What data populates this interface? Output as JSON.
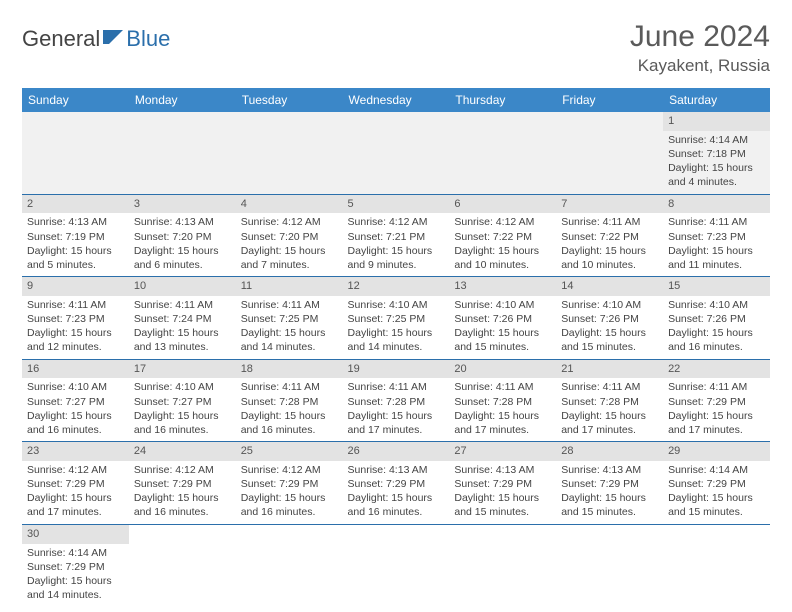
{
  "brand": {
    "part1": "General",
    "part2": "Blue"
  },
  "title": "June 2024",
  "location": "Kayakent, Russia",
  "colors": {
    "header_bg": "#3b87c8",
    "header_text": "#ffffff",
    "daynum_bg": "#e3e3e3",
    "row_divider": "#2b6fab",
    "empty_bg": "#f1f1f1",
    "brand_blue": "#2b6fab",
    "text": "#444444"
  },
  "weekdays": [
    "Sunday",
    "Monday",
    "Tuesday",
    "Wednesday",
    "Thursday",
    "Friday",
    "Saturday"
  ],
  "first_weekday_index": 6,
  "days": [
    {
      "n": 1,
      "sunrise": "4:14 AM",
      "sunset": "7:18 PM",
      "daylight": "15 hours and 4 minutes."
    },
    {
      "n": 2,
      "sunrise": "4:13 AM",
      "sunset": "7:19 PM",
      "daylight": "15 hours and 5 minutes."
    },
    {
      "n": 3,
      "sunrise": "4:13 AM",
      "sunset": "7:20 PM",
      "daylight": "15 hours and 6 minutes."
    },
    {
      "n": 4,
      "sunrise": "4:12 AM",
      "sunset": "7:20 PM",
      "daylight": "15 hours and 7 minutes."
    },
    {
      "n": 5,
      "sunrise": "4:12 AM",
      "sunset": "7:21 PM",
      "daylight": "15 hours and 9 minutes."
    },
    {
      "n": 6,
      "sunrise": "4:12 AM",
      "sunset": "7:22 PM",
      "daylight": "15 hours and 10 minutes."
    },
    {
      "n": 7,
      "sunrise": "4:11 AM",
      "sunset": "7:22 PM",
      "daylight": "15 hours and 10 minutes."
    },
    {
      "n": 8,
      "sunrise": "4:11 AM",
      "sunset": "7:23 PM",
      "daylight": "15 hours and 11 minutes."
    },
    {
      "n": 9,
      "sunrise": "4:11 AM",
      "sunset": "7:23 PM",
      "daylight": "15 hours and 12 minutes."
    },
    {
      "n": 10,
      "sunrise": "4:11 AM",
      "sunset": "7:24 PM",
      "daylight": "15 hours and 13 minutes."
    },
    {
      "n": 11,
      "sunrise": "4:11 AM",
      "sunset": "7:25 PM",
      "daylight": "15 hours and 14 minutes."
    },
    {
      "n": 12,
      "sunrise": "4:10 AM",
      "sunset": "7:25 PM",
      "daylight": "15 hours and 14 minutes."
    },
    {
      "n": 13,
      "sunrise": "4:10 AM",
      "sunset": "7:26 PM",
      "daylight": "15 hours and 15 minutes."
    },
    {
      "n": 14,
      "sunrise": "4:10 AM",
      "sunset": "7:26 PM",
      "daylight": "15 hours and 15 minutes."
    },
    {
      "n": 15,
      "sunrise": "4:10 AM",
      "sunset": "7:26 PM",
      "daylight": "15 hours and 16 minutes."
    },
    {
      "n": 16,
      "sunrise": "4:10 AM",
      "sunset": "7:27 PM",
      "daylight": "15 hours and 16 minutes."
    },
    {
      "n": 17,
      "sunrise": "4:10 AM",
      "sunset": "7:27 PM",
      "daylight": "15 hours and 16 minutes."
    },
    {
      "n": 18,
      "sunrise": "4:11 AM",
      "sunset": "7:28 PM",
      "daylight": "15 hours and 16 minutes."
    },
    {
      "n": 19,
      "sunrise": "4:11 AM",
      "sunset": "7:28 PM",
      "daylight": "15 hours and 17 minutes."
    },
    {
      "n": 20,
      "sunrise": "4:11 AM",
      "sunset": "7:28 PM",
      "daylight": "15 hours and 17 minutes."
    },
    {
      "n": 21,
      "sunrise": "4:11 AM",
      "sunset": "7:28 PM",
      "daylight": "15 hours and 17 minutes."
    },
    {
      "n": 22,
      "sunrise": "4:11 AM",
      "sunset": "7:29 PM",
      "daylight": "15 hours and 17 minutes."
    },
    {
      "n": 23,
      "sunrise": "4:12 AM",
      "sunset": "7:29 PM",
      "daylight": "15 hours and 17 minutes."
    },
    {
      "n": 24,
      "sunrise": "4:12 AM",
      "sunset": "7:29 PM",
      "daylight": "15 hours and 16 minutes."
    },
    {
      "n": 25,
      "sunrise": "4:12 AM",
      "sunset": "7:29 PM",
      "daylight": "15 hours and 16 minutes."
    },
    {
      "n": 26,
      "sunrise": "4:13 AM",
      "sunset": "7:29 PM",
      "daylight": "15 hours and 16 minutes."
    },
    {
      "n": 27,
      "sunrise": "4:13 AM",
      "sunset": "7:29 PM",
      "daylight": "15 hours and 15 minutes."
    },
    {
      "n": 28,
      "sunrise": "4:13 AM",
      "sunset": "7:29 PM",
      "daylight": "15 hours and 15 minutes."
    },
    {
      "n": 29,
      "sunrise": "4:14 AM",
      "sunset": "7:29 PM",
      "daylight": "15 hours and 15 minutes."
    },
    {
      "n": 30,
      "sunrise": "4:14 AM",
      "sunset": "7:29 PM",
      "daylight": "15 hours and 14 minutes."
    }
  ],
  "labels": {
    "sunrise": "Sunrise:",
    "sunset": "Sunset:",
    "daylight": "Daylight:"
  }
}
